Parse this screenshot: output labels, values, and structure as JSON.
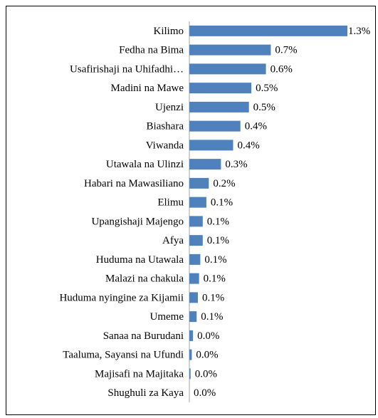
{
  "chart_data": {
    "type": "bar",
    "orientation": "horizontal",
    "color": "#4f81bd",
    "categories": [
      "Kilimo",
      "Fedha na Bima",
      "Usafirishaji na Uhifadhi…",
      "Madini na Mawe",
      "Ujenzi",
      "Biashara",
      "Viwanda",
      "Utawala na Ulinzi",
      "Habari na Mawasiliano",
      "Elimu",
      "Upangishaji Majengo",
      "Afya",
      "Huduma na Utawala",
      "Malazi na chakula",
      "Huduma nyingine za Kijamii",
      "Umeme",
      "Sanaa na Burudani",
      "Taaluma, Sayansi na Ufundi",
      "Majisafi na Majitaka",
      "Shughuli za Kaya"
    ],
    "values": [
      1.3,
      0.67,
      0.63,
      0.51,
      0.49,
      0.42,
      0.36,
      0.26,
      0.16,
      0.14,
      0.11,
      0.11,
      0.09,
      0.08,
      0.07,
      0.06,
      0.03,
      0.02,
      0.01,
      0
    ],
    "value_labels": [
      "1.3%",
      "0.7%",
      "0.6%",
      "0.5%",
      "0.5%",
      "0.4%",
      "0.4%",
      "0.3%",
      "0.2%",
      "0.1%",
      "0.1%",
      "0.1%",
      "0.1%",
      "0.1%",
      "0.1%",
      "0.1%",
      "0.0%",
      "0.0%",
      "0.0%",
      "0.0%"
    ]
  }
}
